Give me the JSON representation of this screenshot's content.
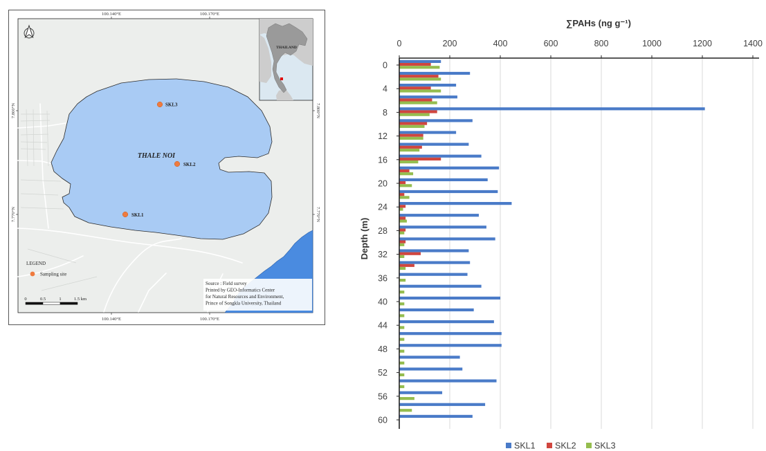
{
  "map": {
    "graticule": {
      "lon_west": "100.140°E",
      "lon_east": "100.170°E",
      "lat_north": "7.800°N",
      "lat_south": "7.770°N"
    },
    "north_arrow_icon": "north-arrow",
    "inset_label": "THAILAND",
    "lake_label": "THALE NOI",
    "sites": [
      "SKL1",
      "SKL2",
      "SKL3"
    ],
    "legend_title": "LEGEND",
    "legend_item": "Sampling site",
    "scale_labels": [
      "0",
      "0.5",
      "1",
      "1.5 km"
    ],
    "source_lines": [
      "Source : Field survey",
      "Printed by GEO-Informatics Center",
      "for Natural Resources and Environment,",
      "Prince of Songkla University, Thailand"
    ],
    "colors": {
      "land": "#eceeec",
      "lake": "#a9cbf4",
      "sea": "#4a8be0",
      "site": "#ef7b3f",
      "inset_marker": "#e00000",
      "lake_label": "#1e3c9a"
    }
  },
  "chart_data": {
    "type": "bar",
    "orientation": "horizontal",
    "xaxis_position": "top",
    "xlabel": "∑PAHs (ng g⁻¹)",
    "ylabel": "Depth (m)",
    "xlim": [
      0,
      1400
    ],
    "xticks": [
      0,
      200,
      400,
      600,
      800,
      1000,
      1200,
      1400
    ],
    "ylim": [
      0,
      60
    ],
    "y_inverted": true,
    "yticks": [
      0,
      4,
      8,
      12,
      16,
      20,
      24,
      28,
      32,
      36,
      40,
      44,
      48,
      52,
      56,
      60
    ],
    "y": [
      0,
      2,
      4,
      6,
      8,
      10,
      12,
      14,
      16,
      18,
      20,
      22,
      24,
      26,
      28,
      30,
      32,
      34,
      36,
      38,
      40,
      42,
      44,
      46,
      48,
      50,
      52,
      54,
      56,
      58,
      60
    ],
    "grid": "vertical",
    "legend": "bottom",
    "series": [
      {
        "name": "SKL1",
        "color": "#4a7bc8",
        "values": [
          165,
          280,
          225,
          230,
          1210,
          290,
          225,
          275,
          325,
          395,
          350,
          390,
          445,
          315,
          345,
          380,
          275,
          280,
          270,
          325,
          400,
          295,
          375,
          405,
          405,
          240,
          250,
          385,
          170,
          340,
          290
        ]
      },
      {
        "name": "SKL2",
        "color": "#d0463f",
        "values": [
          125,
          155,
          125,
          130,
          150,
          110,
          95,
          90,
          165,
          40,
          25,
          20,
          25,
          25,
          25,
          25,
          85,
          60,
          null,
          null,
          null,
          null,
          null,
          null,
          null,
          null,
          null,
          null,
          null,
          null,
          null
        ]
      },
      {
        "name": "SKL3",
        "color": "#95bd4f",
        "values": [
          160,
          165,
          165,
          150,
          120,
          100,
          95,
          80,
          75,
          55,
          50,
          40,
          15,
          30,
          20,
          20,
          20,
          25,
          25,
          20,
          20,
          20,
          20,
          20,
          20,
          20,
          20,
          20,
          60,
          50,
          null
        ]
      }
    ]
  }
}
